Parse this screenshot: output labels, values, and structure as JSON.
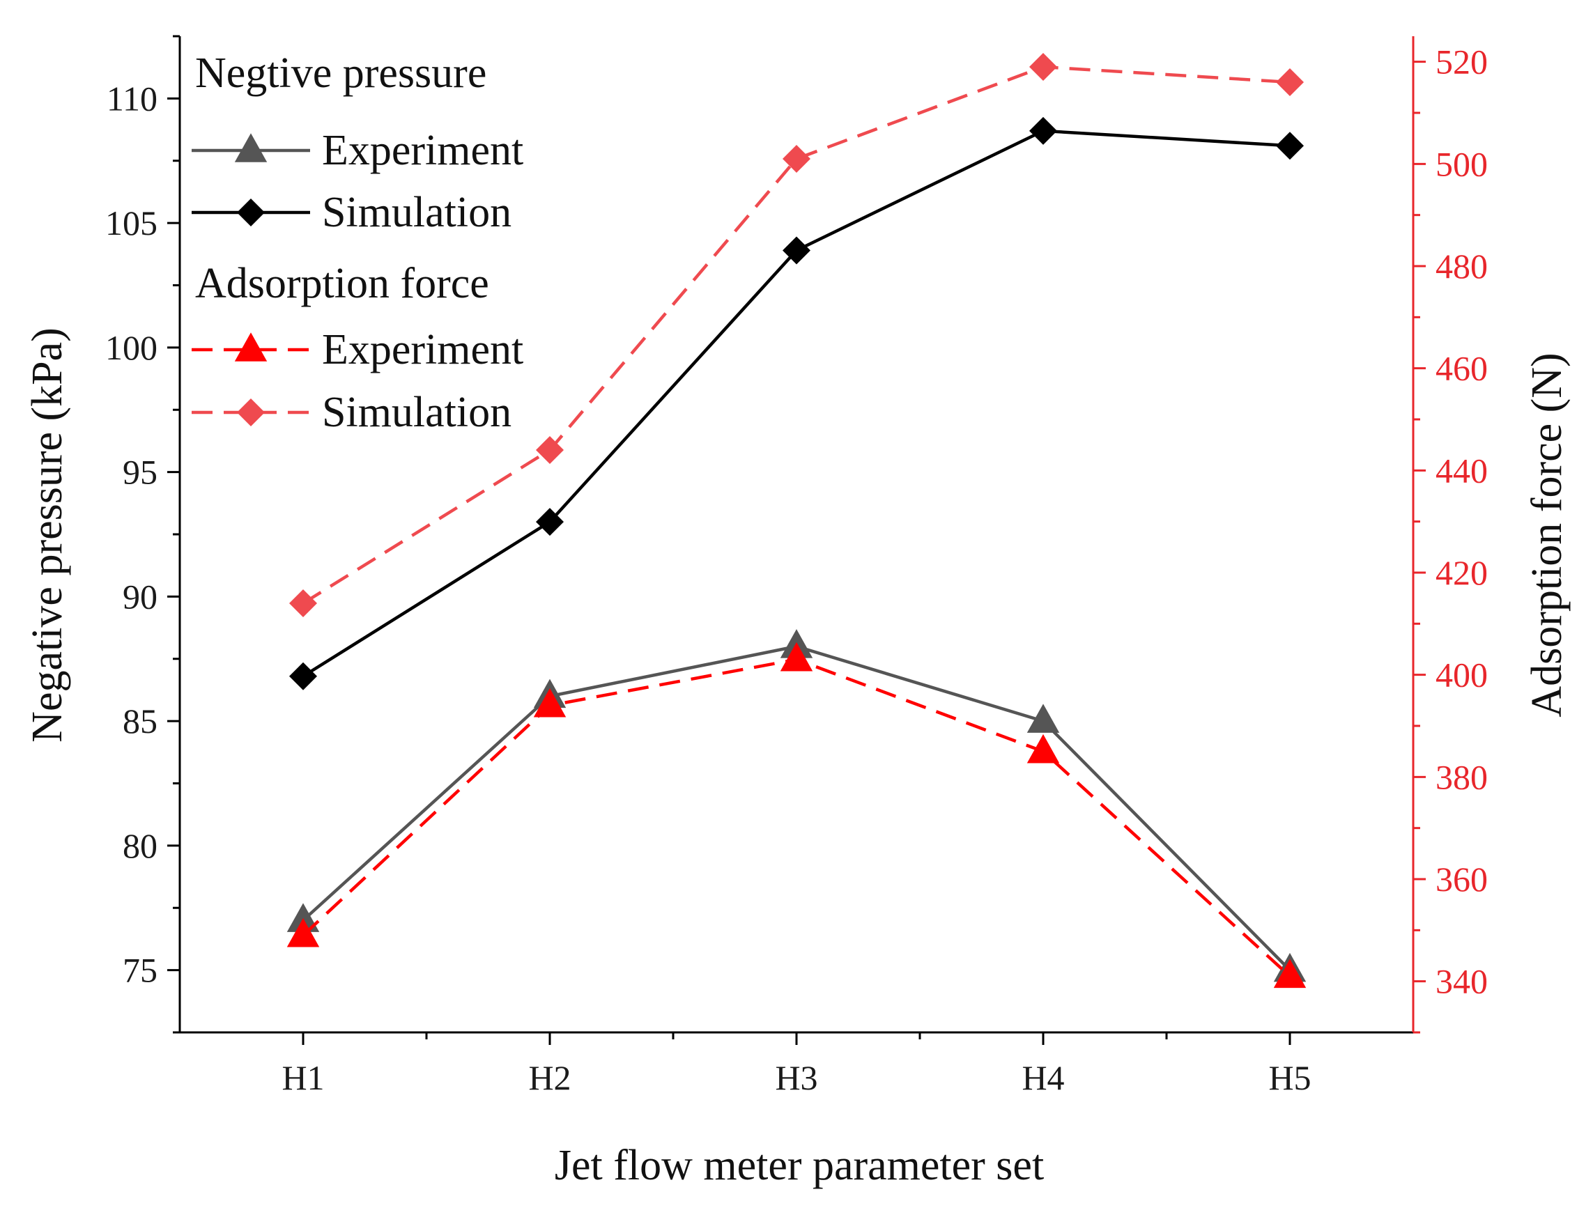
{
  "chart_data": {
    "type": "line",
    "xlabel": "Jet flow meter parameter set",
    "ylabel": "Negative pressure (kPa)",
    "y2label": "Adsorption force (N)",
    "categories": [
      "H1",
      "H2",
      "H3",
      "H4",
      "H5"
    ],
    "ylim": [
      72.5,
      112.5
    ],
    "y2lim": [
      330,
      525
    ],
    "yticks": [
      75,
      80,
      85,
      90,
      95,
      100,
      105,
      110
    ],
    "y2ticks": [
      340,
      360,
      380,
      400,
      420,
      440,
      460,
      480,
      500,
      520
    ],
    "legend_position": "top-left",
    "legend_groups": [
      {
        "title": "Negtive pressure",
        "entries": [
          "Experiment",
          "Simulation"
        ]
      },
      {
        "title": "Adsorption force",
        "entries": [
          "Experiment",
          "Simulation"
        ]
      }
    ],
    "series": [
      {
        "name": "Experiment",
        "group": "Negtive pressure",
        "axis": "left",
        "marker": "triangle",
        "line": "solid",
        "color": "#555555",
        "values": [
          77.0,
          86.0,
          88.0,
          85.0,
          75.0
        ]
      },
      {
        "name": "Simulation",
        "group": "Negtive pressure",
        "axis": "left",
        "marker": "diamond",
        "line": "solid",
        "color": "#000000",
        "values": [
          86.8,
          93.0,
          103.9,
          108.7,
          108.1
        ]
      },
      {
        "name": "Experiment",
        "group": "Adsorption force",
        "axis": "right",
        "marker": "triangle",
        "line": "dashed",
        "color": "#ff0000",
        "values": [
          349,
          394,
          403,
          385,
          341
        ]
      },
      {
        "name": "Simulation",
        "group": "Adsorption force",
        "axis": "right",
        "marker": "diamond",
        "line": "dashed",
        "color": "#ef4a4f",
        "values": [
          414,
          444,
          501,
          519,
          516
        ]
      }
    ],
    "colors": {
      "left_axis": "#000000",
      "right_axis": "#e8262b"
    }
  }
}
